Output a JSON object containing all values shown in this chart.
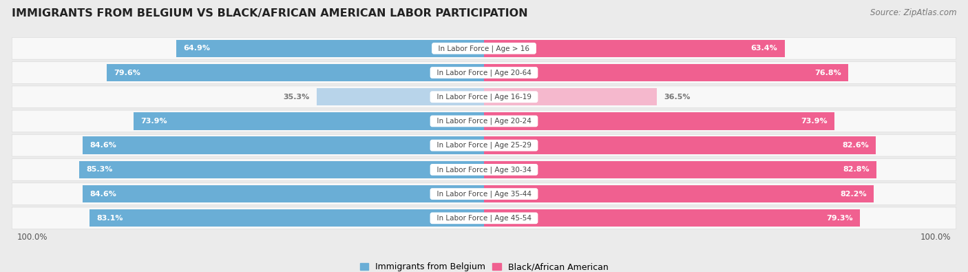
{
  "title": "IMMIGRANTS FROM BELGIUM VS BLACK/AFRICAN AMERICAN LABOR PARTICIPATION",
  "source": "Source: ZipAtlas.com",
  "categories": [
    "In Labor Force | Age > 16",
    "In Labor Force | Age 20-64",
    "In Labor Force | Age 16-19",
    "In Labor Force | Age 20-24",
    "In Labor Force | Age 25-29",
    "In Labor Force | Age 30-34",
    "In Labor Force | Age 35-44",
    "In Labor Force | Age 45-54"
  ],
  "belgium_values": [
    64.9,
    79.6,
    35.3,
    73.9,
    84.6,
    85.3,
    84.6,
    83.1
  ],
  "black_values": [
    63.4,
    76.8,
    36.5,
    73.9,
    82.6,
    82.8,
    82.2,
    79.3
  ],
  "belgium_color_full": "#6AAED6",
  "belgium_color_light": "#B8D4EA",
  "black_color_full": "#F06090",
  "black_color_light": "#F5B8CD",
  "label_color_full": "#FFFFFF",
  "label_color_light": "#777777",
  "center_label_color": "#444444",
  "bg_color": "#EBEBEB",
  "row_bg": "#F8F8F8",
  "row_bg_light": "#FAFAFA",
  "max_val": 100.0,
  "bar_height": 0.72,
  "legend_belgium": "Immigrants from Belgium",
  "legend_black": "Black/African American",
  "title_fontsize": 11.5,
  "source_fontsize": 8.5,
  "label_fontsize": 8.0,
  "cat_fontsize": 7.5,
  "axis_label_fontsize": 8.5
}
